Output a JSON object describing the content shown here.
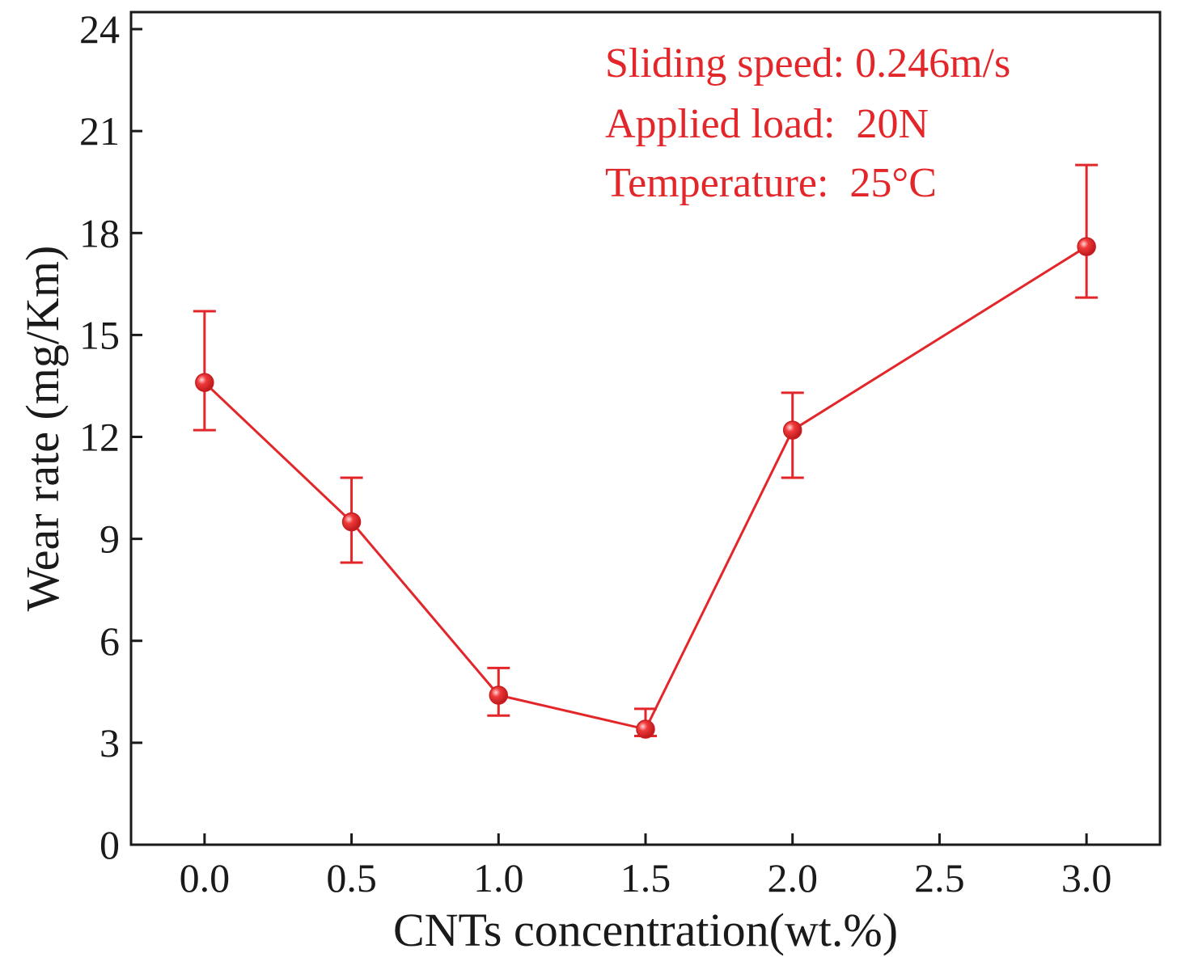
{
  "chart_data": {
    "type": "line",
    "title": "",
    "xlabel": "CNTs concentration(wt.%)",
    "ylabel": "Wear rate (mg/Km)",
    "xlim": [
      -0.25,
      3.25
    ],
    "ylim": [
      0,
      24.5
    ],
    "xticks": [
      "0.0",
      "0.5",
      "1.0",
      "1.5",
      "2.0",
      "2.5",
      "3.0"
    ],
    "yticks": [
      "0",
      "3",
      "6",
      "9",
      "12",
      "15",
      "18",
      "21",
      "24"
    ],
    "grid": false,
    "color": "#e3262a",
    "series": [
      {
        "name": "Wear rate",
        "x": [
          0.0,
          0.5,
          1.0,
          1.5,
          2.0,
          3.0
        ],
        "y": [
          13.6,
          9.5,
          4.4,
          3.4,
          12.2,
          17.6
        ],
        "err_low": [
          12.2,
          8.3,
          3.8,
          3.2,
          10.8,
          16.1
        ],
        "err_high": [
          15.7,
          10.8,
          5.2,
          4.0,
          13.3,
          20.0
        ]
      }
    ],
    "annotations": [
      "Sliding speed: 0.246m/s",
      "Applied load:  20N",
      "Temperature:  25°C"
    ]
  }
}
